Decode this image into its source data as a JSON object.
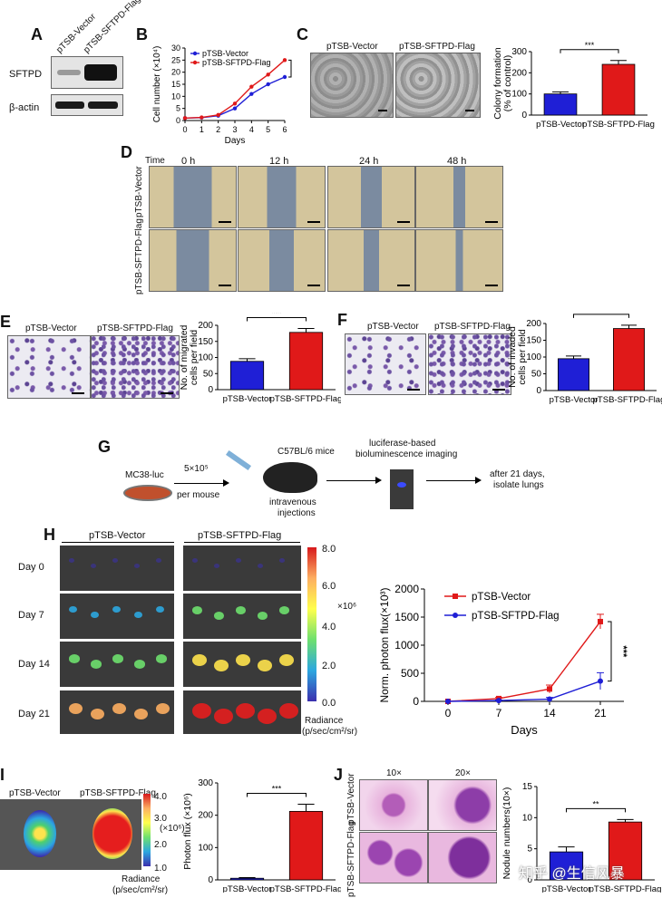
{
  "panels": {
    "A": {
      "label": "A",
      "columns": [
        "pTSB-Vector",
        "pTSB-SFTPD-Flag"
      ],
      "rows": [
        "SFTPD",
        "β-actin"
      ]
    },
    "B": {
      "label": "B",
      "legend": [
        "pTSB-Vector",
        "pTSB-SFTPD-Flag"
      ],
      "ylabel": "Cell number (×10⁴)",
      "xlabel": "Days",
      "sig": "***"
    },
    "C": {
      "label": "C",
      "images": [
        "pTSB-Vector",
        "pTSB-SFTPD-Flag"
      ],
      "ylabel_1": "Colony formation",
      "ylabel_2": "(% of control)",
      "sig": "***"
    },
    "D": {
      "label": "D",
      "time_label": "Time",
      "times": [
        "0 h",
        "12 h",
        "24 h",
        "48 h"
      ],
      "rows": [
        "pTSB-Vector",
        "pTSB-SFTPD-Flag"
      ]
    },
    "E": {
      "label": "E",
      "images": [
        "pTSB-Vector",
        "pTSB-SFTPD-Flag"
      ],
      "ylabel_1": "No. of migrated",
      "ylabel_2": "cells per field",
      "sig": "***"
    },
    "F": {
      "label": "F",
      "images": [
        "pTSB-Vector",
        "pTSB-SFTPD-Flag"
      ],
      "ylabel_1": "No. of invaded",
      "ylabel_2": "cells per field",
      "sig": "***"
    },
    "G": {
      "label": "G",
      "cells": "MC38-luc",
      "dose": "5×10⁵",
      "per_mouse": "per mouse",
      "mice": "C57BL/6 mice",
      "route_1": "intravenous",
      "route_2": "injections",
      "imaging_1": "luciferase-based",
      "imaging_2": "bioluminescence imaging",
      "end_1": "after 21 days,",
      "end_2": "isolate lungs"
    },
    "H": {
      "label": "H",
      "groups": [
        "pTSB-Vector",
        "pTSB-SFTPD-Flag"
      ],
      "days": [
        "Day  0",
        "Day  7",
        "Day  14",
        "Day 21"
      ],
      "scale_max": "8.0",
      "scale_ticks": [
        "6.0",
        "4.0",
        "2.0",
        "0.0"
      ],
      "scale_unit": "×10⁶",
      "radiance_1": "Radiance",
      "radiance_2": "(p/sec/cm²/sr)",
      "ylabel": "Norm. photon flux(×10³)",
      "xlabel": "Days",
      "sig": "***"
    },
    "I": {
      "label": "I",
      "images": [
        "pTSB-Vector",
        "pTSB-SFTPD-Flag"
      ],
      "scale_ticks": [
        "4.0",
        "3.0",
        "2.0",
        "1.0"
      ],
      "scale_unit": "(×10⁶)",
      "radiance_1": "Radiance",
      "radiance_2": "(p/sec/cm²/sr)",
      "ylabel": "Photon flux (×10⁶)",
      "sig": "***"
    },
    "J": {
      "label": "J",
      "mags": [
        "10×",
        "20×"
      ],
      "rows": [
        "pTSB-Vector",
        "pTSB-SFTPD-Flag"
      ],
      "ylabel": "Nodule numbers(10×)",
      "sig": "**",
      "watermark": "知乎 @生信风暴"
    }
  },
  "colors": {
    "vector": "#1f1fd6",
    "sftpd": "#e01919"
  },
  "chart_data": [
    {
      "id": "B",
      "type": "line",
      "x": [
        0,
        1,
        2,
        3,
        4,
        5,
        6
      ],
      "series": [
        {
          "name": "pTSB-Vector",
          "values": [
            1,
            1.2,
            2,
            5,
            11,
            15,
            18
          ]
        },
        {
          "name": "pTSB-SFTPD-Flag",
          "values": [
            1,
            1.3,
            2.3,
            7,
            14,
            19,
            25
          ]
        }
      ],
      "xlabel": "Days",
      "ylabel": "Cell number (×10⁴)",
      "ylim": [
        0,
        30
      ],
      "yticks": [
        0,
        5,
        10,
        15,
        20,
        25,
        30
      ],
      "xticks": [
        0,
        1,
        2,
        3,
        4,
        5,
        6
      ]
    },
    {
      "id": "C",
      "type": "bar",
      "categories": [
        "pTSB-Vector",
        "pTSB-SFTPD-Flag"
      ],
      "values": [
        100,
        240
      ],
      "errors": [
        10,
        18
      ],
      "ylim": [
        0,
        300
      ],
      "yticks": [
        0,
        100,
        200,
        300
      ]
    },
    {
      "id": "E",
      "type": "bar",
      "categories": [
        "pTSB-Vector",
        "pTSB-SFTPD-Flag"
      ],
      "values": [
        88,
        178
      ],
      "errors": [
        8,
        12
      ],
      "ylim": [
        0,
        200
      ],
      "yticks": [
        0,
        50,
        100,
        150,
        200
      ]
    },
    {
      "id": "F",
      "type": "bar",
      "categories": [
        "pTSB-Vector",
        "pTSB-SFTPD-Flag"
      ],
      "values": [
        95,
        185
      ],
      "errors": [
        8,
        10
      ],
      "ylim": [
        0,
        200
      ],
      "yticks": [
        0,
        50,
        100,
        150,
        200
      ]
    },
    {
      "id": "H",
      "type": "line",
      "x": [
        0,
        7,
        14,
        21
      ],
      "series": [
        {
          "name": "pTSB-Vector",
          "values": [
            0,
            50,
            220,
            1420
          ],
          "errors": [
            0,
            20,
            70,
            130
          ]
        },
        {
          "name": "pTSB-SFTPD-Flag",
          "values": [
            0,
            15,
            40,
            360
          ],
          "errors": [
            0,
            10,
            30,
            150
          ]
        }
      ],
      "xlabel": "Days",
      "ylabel": "Norm. photon flux(×10³)",
      "ylim": [
        0,
        2000
      ],
      "yticks": [
        0,
        500,
        1000,
        1500,
        2000
      ],
      "xticks": [
        0,
        7,
        14,
        21
      ]
    },
    {
      "id": "I",
      "type": "bar",
      "categories": [
        "pTSB-Vector",
        "pTSB-SFTPD-Flag"
      ],
      "values": [
        5,
        212
      ],
      "errors": [
        2,
        22
      ],
      "ylim": [
        0,
        300
      ],
      "yticks": [
        0,
        100,
        200,
        300
      ]
    },
    {
      "id": "J",
      "type": "bar",
      "categories": [
        "pTSB-Vector",
        "pTSB-SFTPD-Flag"
      ],
      "values": [
        4.5,
        9.3
      ],
      "errors": [
        0.8,
        0.4
      ],
      "ylim": [
        0,
        15
      ],
      "yticks": [
        0,
        5,
        10,
        15
      ]
    }
  ]
}
